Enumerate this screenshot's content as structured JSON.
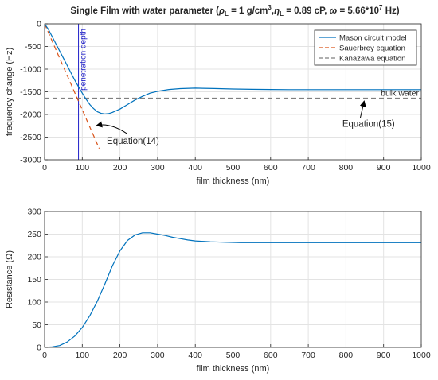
{
  "figure": {
    "title_parts": {
      "prefix": "Single Film with water parameter (",
      "rho": "ρ",
      "rho_sub": "L",
      "rho_val": " = 1 g/cm",
      "rho_sup": "3",
      "sep1": ",",
      "eta": "η",
      "eta_sub": "L",
      "eta_val": " = 0.89 cP, ",
      "omega": "ω",
      "omega_val": " = 5.66*10",
      "omega_sup": "7",
      "suffix": " Hz)"
    }
  },
  "chart_data": [
    {
      "type": "line",
      "xlabel": "film thickness (nm)",
      "ylabel": "frequency change (Hz)",
      "xlim": [
        0,
        1000
      ],
      "ylim": [
        -3000,
        0
      ],
      "xticks": [
        0,
        100,
        200,
        300,
        400,
        500,
        600,
        700,
        800,
        900,
        1000
      ],
      "yticks": [
        0,
        -500,
        -1000,
        -1500,
        -2000,
        -2500,
        -3000
      ],
      "grid": true,
      "legend_position": "top-right",
      "series": [
        {
          "name": "Mason circuit model",
          "color": "#0072BD",
          "style": "solid",
          "x": [
            0,
            10,
            20,
            30,
            40,
            50,
            60,
            70,
            80,
            90,
            100,
            110,
            120,
            130,
            140,
            150,
            160,
            170,
            180,
            200,
            220,
            240,
            260,
            280,
            300,
            330,
            360,
            400,
            420,
            450,
            500,
            550,
            600,
            650,
            700,
            800,
            900,
            1000
          ],
          "y": [
            0,
            -120,
            -280,
            -440,
            -600,
            -760,
            -920,
            -1080,
            -1240,
            -1390,
            -1530,
            -1660,
            -1780,
            -1870,
            -1940,
            -1975,
            -1990,
            -1980,
            -1955,
            -1880,
            -1780,
            -1680,
            -1600,
            -1530,
            -1490,
            -1450,
            -1430,
            -1420,
            -1422,
            -1428,
            -1438,
            -1445,
            -1450,
            -1452,
            -1452,
            -1452,
            -1452,
            -1452
          ]
        },
        {
          "name": "Sauerbrey equation",
          "color": "#D95319",
          "style": "dashed",
          "x": [
            0,
            145
          ],
          "y": [
            0,
            -2750
          ]
        },
        {
          "name": "Kanazawa equation",
          "color": "#7f7f7f",
          "style": "dashed",
          "x": [
            0,
            1000
          ],
          "y": [
            -1640,
            -1640
          ]
        }
      ],
      "vline": {
        "x": 90,
        "color": "#1f1fc8",
        "label": "penetration depth"
      },
      "annotations": [
        {
          "text": "bulk water",
          "x": 1000,
          "y": -1640
        },
        {
          "text": "Equation(14)",
          "x": 165,
          "y": -2580
        },
        {
          "text": "Equation(15)",
          "x": 860,
          "y": -2200
        }
      ]
    },
    {
      "type": "line",
      "xlabel": "film thickness (nm)",
      "ylabel": "Resistance (Ω)",
      "xlim": [
        0,
        1000
      ],
      "ylim": [
        0,
        300
      ],
      "xticks": [
        0,
        100,
        200,
        300,
        400,
        500,
        600,
        700,
        800,
        900,
        1000
      ],
      "yticks": [
        0,
        50,
        100,
        150,
        200,
        250,
        300
      ],
      "grid": true,
      "series": [
        {
          "color": "#0072BD",
          "style": "solid",
          "x": [
            0,
            20,
            40,
            60,
            80,
            100,
            120,
            140,
            160,
            180,
            200,
            220,
            240,
            260,
            280,
            300,
            320,
            340,
            360,
            380,
            400,
            440,
            480,
            520,
            560,
            600,
            700,
            800,
            900,
            1000
          ],
          "y": [
            0,
            1,
            4,
            12,
            25,
            44,
            70,
            102,
            140,
            180,
            213,
            236,
            248,
            253,
            253,
            250,
            247,
            243,
            240,
            237,
            235,
            233,
            232,
            231,
            231,
            231,
            231,
            231,
            231,
            231
          ]
        }
      ]
    }
  ]
}
